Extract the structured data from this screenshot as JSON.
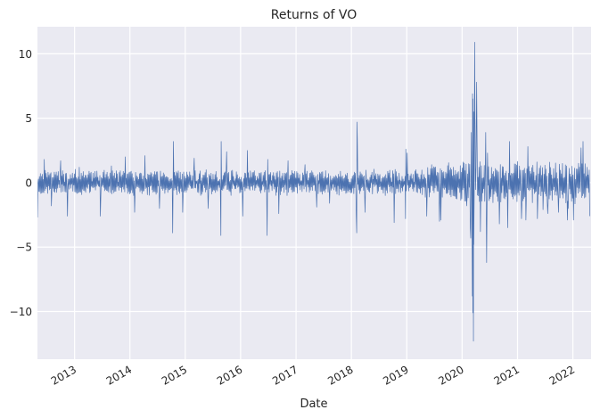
{
  "chart_data": {
    "type": "line",
    "title": "Returns of VO",
    "xlabel": "Date",
    "ylabel": "",
    "x_range": [
      "2012-05-01",
      "2022-05-01"
    ],
    "ylim": [
      -13.7,
      12.1
    ],
    "grid": true,
    "legend": "none",
    "line_color": "#4c72b0",
    "background_color": "#eaeaf2",
    "x_ticks": [
      {
        "date": "2013-01-01",
        "label": "2013"
      },
      {
        "date": "2014-01-01",
        "label": "2014"
      },
      {
        "date": "2015-01-01",
        "label": "2015"
      },
      {
        "date": "2016-01-01",
        "label": "2016"
      },
      {
        "date": "2017-01-01",
        "label": "2017"
      },
      {
        "date": "2018-01-01",
        "label": "2018"
      },
      {
        "date": "2019-01-01",
        "label": "2019"
      },
      {
        "date": "2020-01-01",
        "label": "2020"
      },
      {
        "date": "2021-01-01",
        "label": "2021"
      },
      {
        "date": "2022-01-01",
        "label": "2022"
      }
    ],
    "y_ticks": [
      {
        "value": 10,
        "label": "10"
      },
      {
        "value": 5,
        "label": "5"
      },
      {
        "value": 0,
        "label": "0"
      },
      {
        "value": -5,
        "label": "−5"
      },
      {
        "value": -10,
        "label": "−10"
      }
    ],
    "series": [
      {
        "type": "daily_returns_envelope",
        "points": [
          {
            "x": "2012-05-01",
            "y": -2.7
          },
          {
            "x": "2012-06-15",
            "y": 1.8
          },
          {
            "x": "2012-08-01",
            "y": -1.8
          },
          {
            "x": "2012-10-01",
            "y": 1.7
          },
          {
            "x": "2012-11-15",
            "y": -2.6
          },
          {
            "x": "2013-02-01",
            "y": 1.2
          },
          {
            "x": "2013-06-20",
            "y": -2.6
          },
          {
            "x": "2013-09-01",
            "y": 1.3
          },
          {
            "x": "2013-12-01",
            "y": 2.0
          },
          {
            "x": "2014-02-01",
            "y": -2.3
          },
          {
            "x": "2014-04-10",
            "y": 2.1
          },
          {
            "x": "2014-07-15",
            "y": -2.0
          },
          {
            "x": "2014-10-10",
            "y": -3.9
          },
          {
            "x": "2014-10-15",
            "y": 3.2
          },
          {
            "x": "2014-12-15",
            "y": -2.3
          },
          {
            "x": "2015-03-01",
            "y": 1.9
          },
          {
            "x": "2015-06-01",
            "y": -2.0
          },
          {
            "x": "2015-08-24",
            "y": -4.1
          },
          {
            "x": "2015-08-26",
            "y": 3.2
          },
          {
            "x": "2015-10-01",
            "y": 2.4
          },
          {
            "x": "2016-01-15",
            "y": -2.6
          },
          {
            "x": "2016-02-15",
            "y": 2.5
          },
          {
            "x": "2016-06-24",
            "y": -4.1
          },
          {
            "x": "2016-06-28",
            "y": 1.8
          },
          {
            "x": "2016-09-09",
            "y": -2.4
          },
          {
            "x": "2016-11-09",
            "y": 1.7
          },
          {
            "x": "2017-03-01",
            "y": 1.4
          },
          {
            "x": "2017-05-17",
            "y": -1.9
          },
          {
            "x": "2017-08-10",
            "y": -1.6
          },
          {
            "x": "2018-02-02",
            "y": -2.6
          },
          {
            "x": "2018-02-05",
            "y": -3.9
          },
          {
            "x": "2018-02-07",
            "y": 4.7
          },
          {
            "x": "2018-02-09",
            "y": 3.4
          },
          {
            "x": "2018-04-01",
            "y": -2.3
          },
          {
            "x": "2018-10-10",
            "y": -3.1
          },
          {
            "x": "2018-12-24",
            "y": -2.8
          },
          {
            "x": "2018-12-26",
            "y": 2.6
          },
          {
            "x": "2019-01-04",
            "y": 2.3
          },
          {
            "x": "2019-05-13",
            "y": -2.6
          },
          {
            "x": "2019-08-05",
            "y": -3.0
          },
          {
            "x": "2019-08-14",
            "y": -2.9
          },
          {
            "x": "2020-01-31",
            "y": -1.8
          },
          {
            "x": "2020-02-24",
            "y": -3.5
          },
          {
            "x": "2020-02-27",
            "y": -4.3
          },
          {
            "x": "2020-03-02",
            "y": 3.9
          },
          {
            "x": "2020-03-09",
            "y": -8.8
          },
          {
            "x": "2020-03-10",
            "y": 6.9
          },
          {
            "x": "2020-03-12",
            "y": -10.1
          },
          {
            "x": "2020-03-13",
            "y": 6.5
          },
          {
            "x": "2020-03-16",
            "y": -12.3
          },
          {
            "x": "2020-03-17",
            "y": 5.5
          },
          {
            "x": "2020-03-18",
            "y": -4.8
          },
          {
            "x": "2020-03-24",
            "y": 10.9
          },
          {
            "x": "2020-03-26",
            "y": 5.7
          },
          {
            "x": "2020-04-06",
            "y": 7.8
          },
          {
            "x": "2020-04-09",
            "y": 3.1
          },
          {
            "x": "2020-05-01",
            "y": -3.8
          },
          {
            "x": "2020-06-05",
            "y": 3.9
          },
          {
            "x": "2020-06-11",
            "y": -6.2
          },
          {
            "x": "2020-06-17",
            "y": 2.3
          },
          {
            "x": "2020-09-03",
            "y": -3.2
          },
          {
            "x": "2020-10-28",
            "y": -3.5
          },
          {
            "x": "2020-11-09",
            "y": 3.2
          },
          {
            "x": "2021-01-27",
            "y": -2.8
          },
          {
            "x": "2021-02-25",
            "y": -2.9
          },
          {
            "x": "2021-03-10",
            "y": 2.8
          },
          {
            "x": "2021-05-12",
            "y": -2.8
          },
          {
            "x": "2021-06-18",
            "y": -2.1
          },
          {
            "x": "2021-07-19",
            "y": -2.4
          },
          {
            "x": "2021-09-28",
            "y": -2.3
          },
          {
            "x": "2021-11-26",
            "y": -2.9
          },
          {
            "x": "2021-12-01",
            "y": -2.0
          },
          {
            "x": "2022-01-05",
            "y": -2.9
          },
          {
            "x": "2022-02-24",
            "y": 2.7
          },
          {
            "x": "2022-03-09",
            "y": 3.2
          },
          {
            "x": "2022-04-05",
            "y": 1.2
          },
          {
            "x": "2022-04-22",
            "y": -2.6
          }
        ]
      }
    ]
  }
}
